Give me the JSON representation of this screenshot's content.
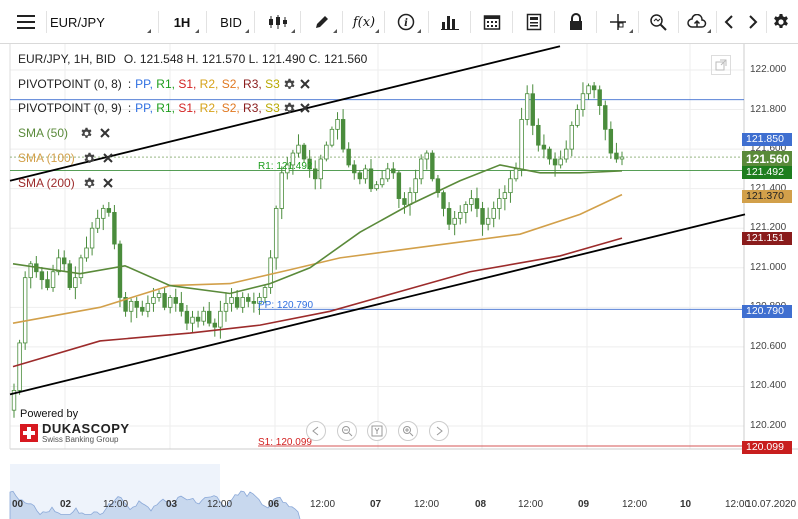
{
  "toolbar": {
    "instrument": "EUR/JPY",
    "timeframe": "1H",
    "price_side": "BID"
  },
  "legend": {
    "header": "EUR/JPY, 1H, BID",
    "ohlc": "O. 121.548 H. 121.570 L. 121.490 C. 121.560",
    "pivot1_name": "PIVOTPOINT (0, 8)",
    "pivot2_name": "PIVOTPOINT (0, 9)",
    "pivot_sep": ":",
    "pivot_levels": [
      "PP,",
      "R1,",
      "S1,",
      "R2,",
      "S2,",
      "R3,",
      "S3"
    ],
    "sma50": "SMA (50)",
    "sma100": "SMA (100)",
    "sma200": "SMA (200)"
  },
  "colors": {
    "pp": "#2f6fe0",
    "r1": "#1e9e1e",
    "s1": "#d32222",
    "r2": "#d6a21a",
    "s2": "#e07820",
    "r3": "#8a1c1c",
    "s3": "#b8a800",
    "sma50": "#5a8a3a",
    "sma100": "#d2a04a",
    "sma200": "#9c2b2b",
    "candle": "#4a8c3c"
  },
  "levels": {
    "pp_label": "PP: 120.790",
    "r1_label": "R1: 121.492",
    "s1_label": "S1: 120.099"
  },
  "price_labels": {
    "line_850": "121.850",
    "current": "121.560",
    "r1": "121.492",
    "sma100": "121.370",
    "sma200": "121.151",
    "pp": "120.790",
    "s1": "120.099"
  },
  "y_axis": {
    "ticks": [
      "122.000",
      "121.800",
      "121.600",
      "121.400",
      "121.200",
      "121.000",
      "120.800",
      "120.600",
      "120.400",
      "120.200"
    ]
  },
  "x_axis": {
    "ticks": [
      "00",
      "02",
      "12:00",
      "03",
      "12:00",
      "06",
      "12:00",
      "07",
      "12:00",
      "08",
      "12:00",
      "09",
      "12:00",
      "10",
      "12:00",
      "10.07.2020"
    ]
  },
  "branding": {
    "powered_by": "Powered by",
    "name": "DUKASCOPY",
    "tagline": "Swiss Banking Group"
  },
  "chart_data": {
    "type": "candlestick",
    "instrument": "EUR/JPY",
    "timeframe": "1H",
    "y_range": [
      120.1,
      122.05
    ],
    "close_series": [
      120.38,
      120.62,
      120.95,
      121.02,
      120.98,
      120.94,
      120.9,
      120.98,
      121.05,
      121.02,
      120.9,
      120.95,
      121.05,
      121.1,
      121.2,
      121.25,
      121.3,
      121.28,
      121.12,
      120.85,
      120.78,
      120.83,
      120.8,
      120.78,
      120.82,
      120.85,
      120.87,
      120.8,
      120.85,
      120.82,
      120.78,
      120.72,
      120.75,
      120.73,
      120.78,
      120.72,
      120.7,
      120.78,
      120.82,
      120.85,
      120.8,
      120.85,
      120.83,
      120.82,
      120.85,
      120.9,
      121.05,
      121.3,
      121.48,
      121.52,
      121.58,
      121.62,
      121.55,
      121.5,
      121.45,
      121.55,
      121.62,
      121.7,
      121.75,
      121.6,
      121.52,
      121.48,
      121.45,
      121.5,
      121.4,
      121.42,
      121.45,
      121.5,
      121.48,
      121.35,
      121.32,
      121.38,
      121.45,
      121.55,
      121.58,
      121.45,
      121.38,
      121.3,
      121.22,
      121.25,
      121.28,
      121.32,
      121.35,
      121.3,
      121.22,
      121.25,
      121.3,
      121.35,
      121.38,
      121.45,
      121.5,
      121.75,
      121.88,
      121.72,
      121.62,
      121.6,
      121.55,
      121.52,
      121.55,
      121.6,
      121.72,
      121.8,
      121.88,
      121.92,
      121.9,
      121.82,
      121.7,
      121.58,
      121.55,
      121.56
    ],
    "sma50": [
      [
        13,
        121.02
      ],
      [
        80,
        120.97
      ],
      [
        125,
        121.01
      ],
      [
        170,
        120.91
      ],
      [
        230,
        120.87
      ],
      [
        270,
        120.92
      ],
      [
        310,
        121.0
      ],
      [
        360,
        121.18
      ],
      [
        410,
        121.32
      ],
      [
        460,
        121.44
      ],
      [
        500,
        121.52
      ],
      [
        540,
        121.48
      ],
      [
        580,
        121.48
      ],
      [
        622,
        121.49
      ]
    ],
    "sma100": [
      [
        13,
        120.72
      ],
      [
        100,
        120.8
      ],
      [
        170,
        120.91
      ],
      [
        230,
        120.92
      ],
      [
        290,
        120.99
      ],
      [
        340,
        121.05
      ],
      [
        400,
        121.09
      ],
      [
        460,
        121.13
      ],
      [
        520,
        121.17
      ],
      [
        580,
        121.27
      ],
      [
        622,
        121.37
      ]
    ],
    "sma200": [
      [
        13,
        120.5
      ],
      [
        100,
        120.63
      ],
      [
        190,
        120.67
      ],
      [
        260,
        120.71
      ],
      [
        330,
        120.78
      ],
      [
        400,
        120.88
      ],
      [
        470,
        120.98
      ],
      [
        560,
        121.06
      ],
      [
        622,
        121.15
      ]
    ],
    "trendline_upper": [
      [
        10,
        121.44
      ],
      [
        560,
        122.12
      ]
    ],
    "trendline_lower": [
      [
        10,
        120.36
      ],
      [
        745,
        121.27
      ]
    ],
    "pivot_pp": 120.79,
    "pivot_r1": 121.492,
    "pivot_s1": 120.099
  }
}
